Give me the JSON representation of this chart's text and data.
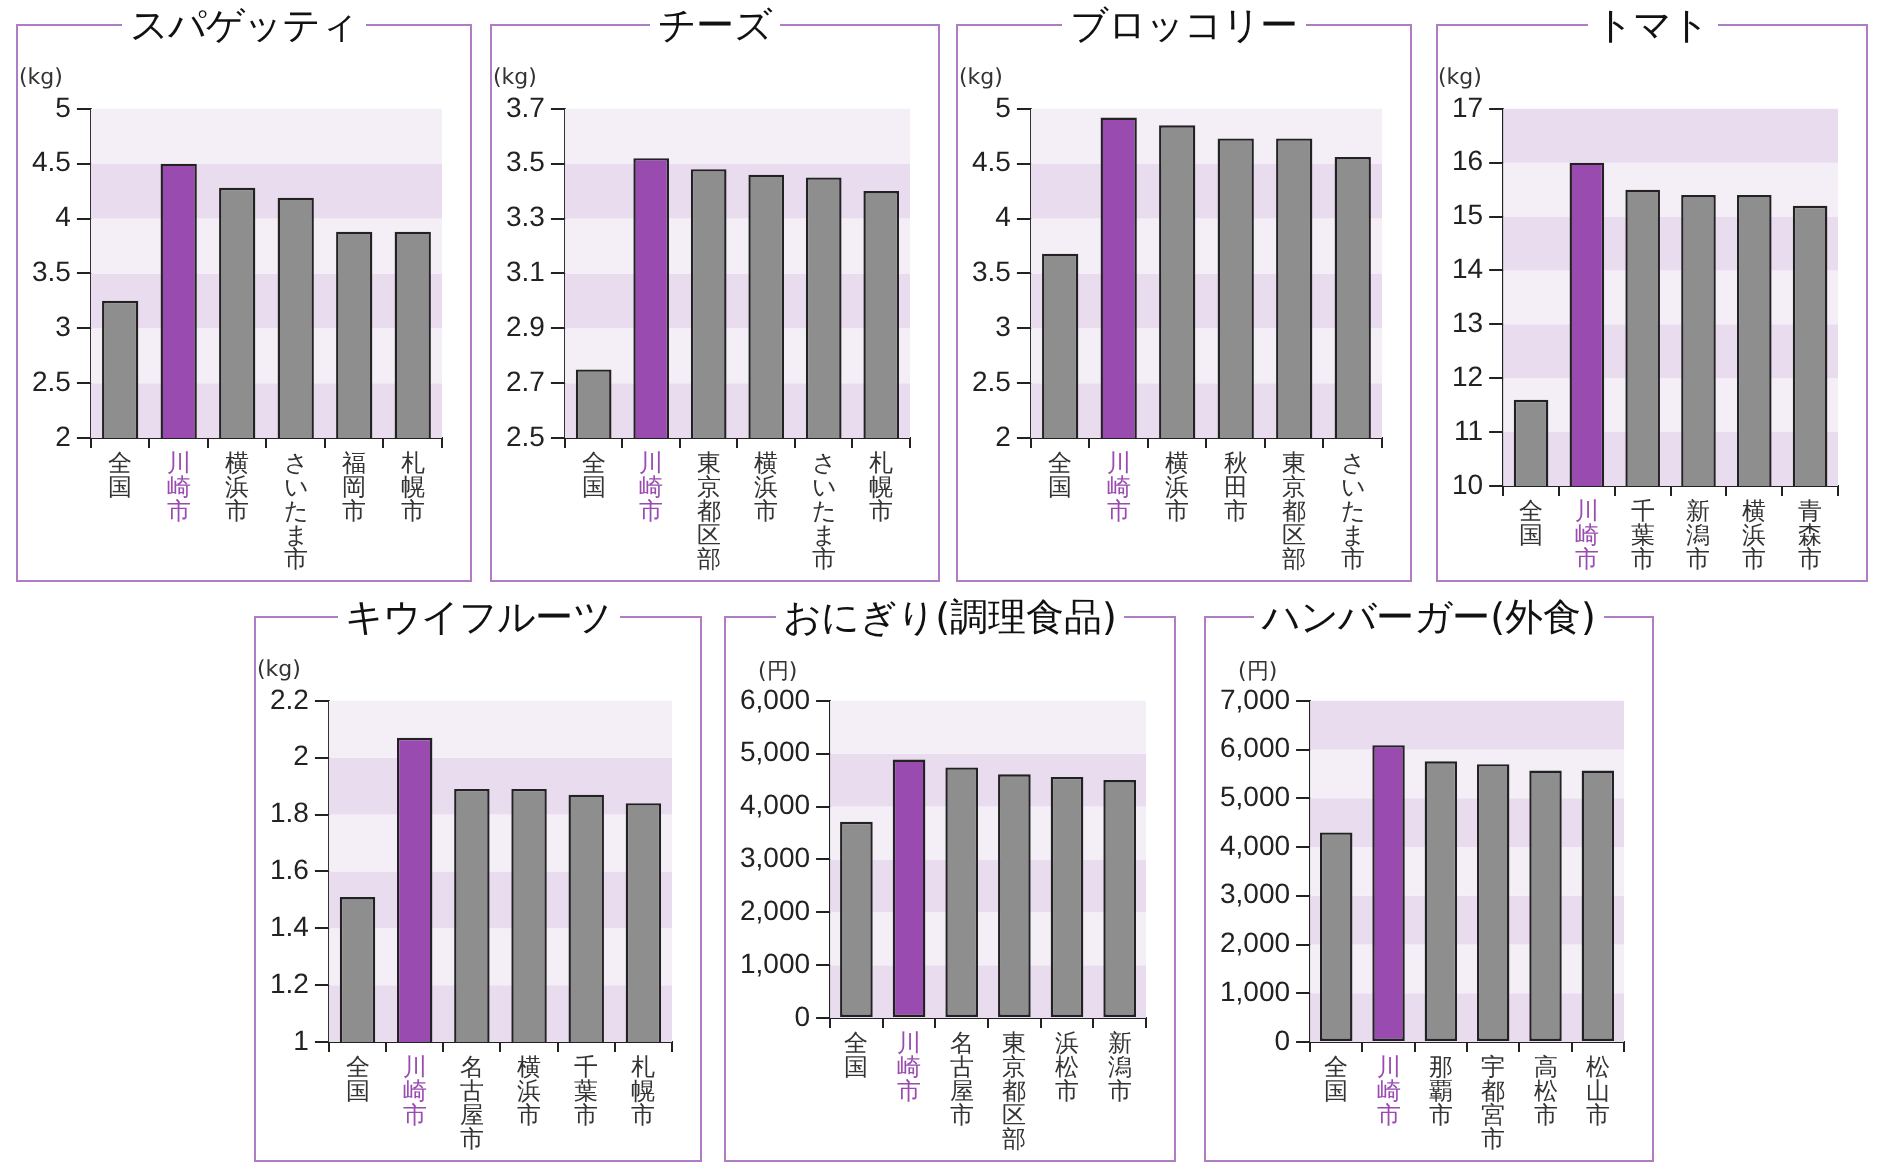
{
  "chart_data": [
    {
      "type": "bar",
      "title": "スパゲッティ",
      "ylabel": "(kg)",
      "categories": [
        "全国",
        "川崎市",
        "横浜市",
        "さいたま市",
        "福岡市",
        "札幌市"
      ],
      "values": [
        3.25,
        4.5,
        4.28,
        4.19,
        3.88,
        3.88
      ],
      "colors": [
        "#8e8e8e",
        "#9a4bb0",
        "#8e8e8e",
        "#8e8e8e",
        "#8e8e8e",
        "#8e8e8e"
      ],
      "ylim": [
        2,
        5
      ],
      "yticks": [
        2,
        2.5,
        3,
        3.5,
        4,
        4.5,
        5
      ]
    },
    {
      "type": "bar",
      "title": "チーズ",
      "ylabel": "(kg)",
      "categories": [
        "全国",
        "川崎市",
        "東京都区部",
        "横浜市",
        "さいたま市",
        "札幌市"
      ],
      "values": [
        2.75,
        3.52,
        3.48,
        3.46,
        3.45,
        3.4
      ],
      "colors": [
        "#8e8e8e",
        "#9a4bb0",
        "#8e8e8e",
        "#8e8e8e",
        "#8e8e8e",
        "#8e8e8e"
      ],
      "ylim": [
        2.5,
        3.7
      ],
      "yticks": [
        2.5,
        2.7,
        2.9,
        3.1,
        3.3,
        3.5,
        3.7
      ]
    },
    {
      "type": "bar",
      "title": "ブロッコリー",
      "ylabel": "(kg)",
      "categories": [
        "全国",
        "川崎市",
        "横浜市",
        "秋田市",
        "東京都区部",
        "さいたま市"
      ],
      "values": [
        3.68,
        4.92,
        4.85,
        4.73,
        4.73,
        4.56
      ],
      "colors": [
        "#8e8e8e",
        "#9a4bb0",
        "#8e8e8e",
        "#8e8e8e",
        "#8e8e8e",
        "#8e8e8e"
      ],
      "ylim": [
        2,
        5
      ],
      "yticks": [
        2,
        2.5,
        3,
        3.5,
        4,
        4.5,
        5
      ]
    },
    {
      "type": "bar",
      "title": "トマト",
      "ylabel": "(kg)",
      "categories": [
        "全国",
        "川崎市",
        "千葉市",
        "新潟市",
        "横浜市",
        "青森市"
      ],
      "values": [
        11.6,
        16,
        15.5,
        15.4,
        15.4,
        15.2
      ],
      "colors": [
        "#8e8e8e",
        "#9a4bb0",
        "#8e8e8e",
        "#8e8e8e",
        "#8e8e8e",
        "#8e8e8e"
      ],
      "ylim": [
        10,
        17
      ],
      "yticks": [
        10,
        11,
        12,
        13,
        14,
        15,
        16,
        17
      ]
    },
    {
      "type": "bar",
      "title": "キウイフルーツ",
      "ylabel": "(kg)",
      "categories": [
        "全国",
        "川崎市",
        "名古屋市",
        "横浜市",
        "千葉市",
        "札幌市"
      ],
      "values": [
        1.51,
        2.07,
        1.89,
        1.89,
        1.87,
        1.84
      ],
      "colors": [
        "#8e8e8e",
        "#9a4bb0",
        "#8e8e8e",
        "#8e8e8e",
        "#8e8e8e",
        "#8e8e8e"
      ],
      "ylim": [
        1,
        2.2
      ],
      "yticks": [
        1,
        1.2,
        1.4,
        1.6,
        1.8,
        2,
        2.2
      ]
    },
    {
      "type": "bar",
      "title": "おにぎり(調理食品)",
      "ylabel": "(円)",
      "categories": [
        "全国",
        "川崎市",
        "名古屋市",
        "東京都区部",
        "浜松市",
        "新潟市"
      ],
      "values": [
        3710,
        4890,
        4740,
        4610,
        4560,
        4500
      ],
      "colors": [
        "#8e8e8e",
        "#9a4bb0",
        "#8e8e8e",
        "#8e8e8e",
        "#8e8e8e",
        "#8e8e8e"
      ],
      "ylim": [
        0,
        6000
      ],
      "yticks": [
        0,
        {
          "value": 1000,
          "label": "1,000"
        },
        {
          "value": 2000,
          "label": "2,000"
        },
        {
          "value": 3000,
          "label": "3,000"
        },
        {
          "value": 4000,
          "label": "4,000"
        },
        {
          "value": 5000,
          "label": "5,000"
        },
        {
          "value": 6000,
          "label": "6,000"
        }
      ]
    },
    {
      "type": "bar",
      "title": "ハンバーガー(外食)",
      "ylabel": "(円)",
      "categories": [
        "全国",
        "川崎市",
        "那覇市",
        "宇都宮市",
        "高松市",
        "松山市"
      ],
      "values": [
        4300,
        6090,
        5760,
        5700,
        5570,
        5570
      ],
      "colors": [
        "#8e8e8e",
        "#9a4bb0",
        "#8e8e8e",
        "#8e8e8e",
        "#8e8e8e",
        "#8e8e8e"
      ],
      "ylim": [
        0,
        7000
      ],
      "yticks": [
        0,
        {
          "value": 1000,
          "label": "1,000"
        },
        {
          "value": 2000,
          "label": "2,000"
        },
        {
          "value": 3000,
          "label": "3,000"
        },
        {
          "value": 4000,
          "label": "4,000"
        },
        {
          "value": 5000,
          "label": "5,000"
        },
        {
          "value": 6000,
          "label": "6,000"
        },
        {
          "value": 7000,
          "label": "7,000"
        }
      ]
    }
  ]
}
